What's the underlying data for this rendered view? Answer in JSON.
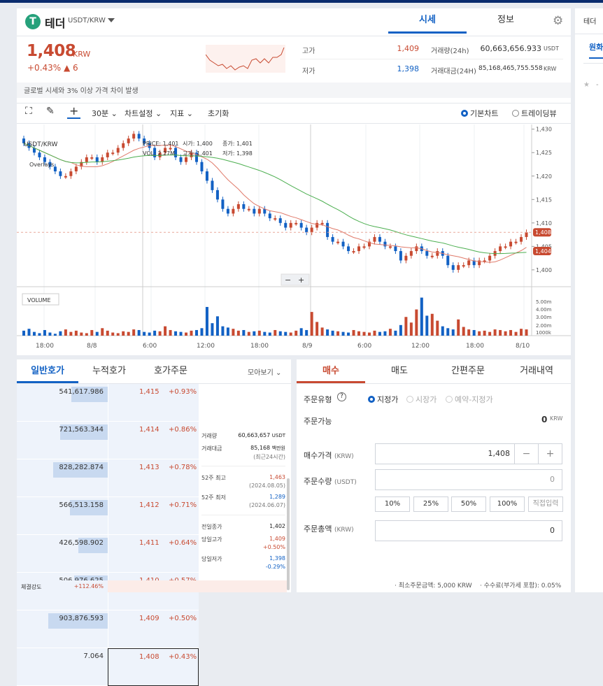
{
  "coin": {
    "logo": "T",
    "name": "테더",
    "pair": "USDT/KRW",
    "price": "1,408",
    "unit": "KRW",
    "change": "+0.43% ▲ 6"
  },
  "tabs": {
    "market": "시세",
    "info": "정보"
  },
  "side_tab": "테더",
  "side_tab2": "원화",
  "stats": {
    "high_label": "고가",
    "high": "1,409",
    "low_label": "저가",
    "low": "1,398",
    "vol_label": "거래량(24h)",
    "vol": "60,663,656.933",
    "vol_unit": "USDT",
    "amt_label": "거래대금(24H)",
    "amt": "85,168,465,755.558",
    "amt_unit": "KRW"
  },
  "warning": "글로벌 시세와 3% 이상 가격 차이 발생",
  "toolbar": {
    "interval": "30분",
    "chart_settings": "차트설정",
    "indicator": "지표",
    "reset": "초기화",
    "basic_chart": "기본차트",
    "tradingview": "트레이딩뷰"
  },
  "chart_data": {
    "type": "candlestick",
    "legend": {
      "symbol": "USDT/KRW",
      "price_label": "PRICE:",
      "price": "1,401",
      "open_label": "시가:",
      "open": "1,400",
      "close_label": "종가:",
      "close": "1,401",
      "vol_label": "VOL:",
      "vol": "2.27M",
      "high_label": "고가:",
      "high": "1,401",
      "low_label": "저가:",
      "low": "1,398",
      "overlays": "Overlays"
    },
    "y_ticks": [
      "1,430",
      "1,425",
      "1,420",
      "1,415",
      "1,410",
      "1,405",
      "1,400"
    ],
    "x_ticks": [
      "18:00",
      "8/8",
      "6:00",
      "12:00",
      "18:00",
      "8/9",
      "6:00",
      "12:00",
      "18:00",
      "8/10"
    ],
    "vol_ticks": [
      "5.00m",
      "4.00m",
      "3.00m",
      "2.00m",
      "1000k"
    ],
    "volume_label": "VOLUME",
    "current_price": "1,408",
    "ma_tag": "1,404",
    "close": [
      1427,
      1426,
      1425,
      1424,
      1423,
      1422,
      1421,
      1420,
      1420,
      1421,
      1422,
      1423,
      1424,
      1424,
      1423,
      1424,
      1425,
      1425,
      1426,
      1427,
      1428,
      1429,
      1428,
      1427,
      1426,
      1424,
      1425,
      1426,
      1426,
      1424,
      1423,
      1424,
      1425,
      1423,
      1421,
      1419,
      1417,
      1415,
      1413,
      1412,
      1413,
      1414,
      1413,
      1413,
      1412,
      1413,
      1412,
      1411,
      1411,
      1410,
      1409,
      1410,
      1410,
      1409,
      1408,
      1409,
      1410,
      1410,
      1407,
      1406,
      1406,
      1405,
      1404,
      1404,
      1405,
      1405,
      1406,
      1407,
      1406,
      1405,
      1405,
      1404,
      1402,
      1403,
      1404,
      1405,
      1404,
      1403,
      1403,
      1404,
      1403,
      1401,
      1400,
      1401,
      1401,
      1402,
      1401,
      1402,
      1402,
      1403,
      1404,
      1405,
      1405,
      1406,
      1406,
      1407,
      1408
    ],
    "volume": [
      0.8,
      1.1,
      0.6,
      0.4,
      0.9,
      0.5,
      0.3,
      0.7,
      1.0,
      0.6,
      0.8,
      0.5,
      0.4,
      0.9,
      0.6,
      1.2,
      0.8,
      0.5,
      0.4,
      0.7,
      0.6,
      1.0,
      0.9,
      0.6,
      0.5,
      0.8,
      0.7,
      1.5,
      0.9,
      0.7,
      0.6,
      0.5,
      0.8,
      0.9,
      1.2,
      4.6,
      2.0,
      3.1,
      1.5,
      1.3,
      1.1,
      0.8,
      0.9,
      0.6,
      0.7,
      0.8,
      0.6,
      0.5,
      0.9,
      0.7,
      0.6,
      0.5,
      0.8,
      1.2,
      0.9,
      3.8,
      2.2,
      1.3,
      1.0,
      0.8,
      0.7,
      0.6,
      0.5,
      0.9,
      0.7,
      0.6,
      0.5,
      0.8,
      0.6,
      0.7,
      1.1,
      0.8,
      1.7,
      3.0,
      2.1,
      4.2,
      6.1,
      3.2,
      3.5,
      2.4,
      1.5,
      1.2,
      1.0,
      2.6,
      1.4,
      1.0,
      0.9,
      0.7,
      0.8,
      0.6,
      1.0,
      0.9,
      0.7,
      0.9,
      0.6,
      1.1,
      1.0
    ]
  },
  "orderbook": {
    "tabs": [
      "일반호가",
      "누적호가",
      "호가주문"
    ],
    "view": "모아보기",
    "asks": [
      {
        "vol": "541,617.986",
        "price": "1,415",
        "pct": "+0.93%",
        "fill": 0.55
      },
      {
        "vol": "721,563.344",
        "price": "1,414",
        "pct": "+0.86%",
        "fill": 0.72
      },
      {
        "vol": "828,282.874",
        "price": "1,413",
        "pct": "+0.78%",
        "fill": 0.82
      },
      {
        "vol": "566,513.158",
        "price": "1,412",
        "pct": "+0.71%",
        "fill": 0.57
      },
      {
        "vol": "426,598.902",
        "price": "1,411",
        "pct": "+0.64%",
        "fill": 0.44
      },
      {
        "vol": "506,976.625",
        "price": "1,410",
        "pct": "+0.57%",
        "fill": 0.51
      },
      {
        "vol": "903,876.593",
        "price": "1,409",
        "pct": "+0.50%",
        "fill": 0.9
      },
      {
        "vol": "7.064",
        "price": "1,408",
        "pct": "+0.43%",
        "fill": 0.0
      }
    ],
    "info": {
      "vol_label": "거래량",
      "vol": "60,663,657",
      "vol_unit": "USDT",
      "amt_label": "거래대금",
      "amt": "85,168",
      "amt_unit": "백만원",
      "amt_note": "(최근24시간)",
      "high52_label": "52주 최고",
      "high52": "1,463",
      "high52_date": "(2024.08.05)",
      "low52_label": "52주 최저",
      "low52": "1,289",
      "low52_date": "(2024.06.07)",
      "prev_label": "전일종가",
      "prev": "1,402",
      "dhigh_label": "당일고가",
      "dhigh": "1,409",
      "dhigh_pct": "+0.50%",
      "dlow_label": "당일저가",
      "dlow": "1,398",
      "dlow_pct": "-0.29%"
    },
    "strength_label": "체결강도",
    "strength": "+112.46%"
  },
  "order": {
    "tabs": [
      "매수",
      "매도",
      "간편주문",
      "거래내역"
    ],
    "type_label": "주문유형",
    "types": [
      "지정가",
      "시장가",
      "예약-지정가"
    ],
    "avail_label": "주문가능",
    "avail": "0",
    "avail_unit": "KRW",
    "price_label": "매수가격",
    "price_unit": "(KRW)",
    "price": "1,408",
    "qty_label": "주문수량",
    "qty_unit": "(USDT)",
    "qty": "0",
    "pct": [
      "10%",
      "25%",
      "50%",
      "100%",
      "직접입력"
    ],
    "total_label": "주문총액",
    "total_unit": "(KRW)",
    "total": "0",
    "min_note": "· 최소주문금액: 5,000 KRW",
    "fee_note": "· 수수료(부가세 포함): 0.05%"
  },
  "colors": {
    "up": "#c84a31",
    "down": "#1261c4",
    "accent": "#1261c4"
  }
}
